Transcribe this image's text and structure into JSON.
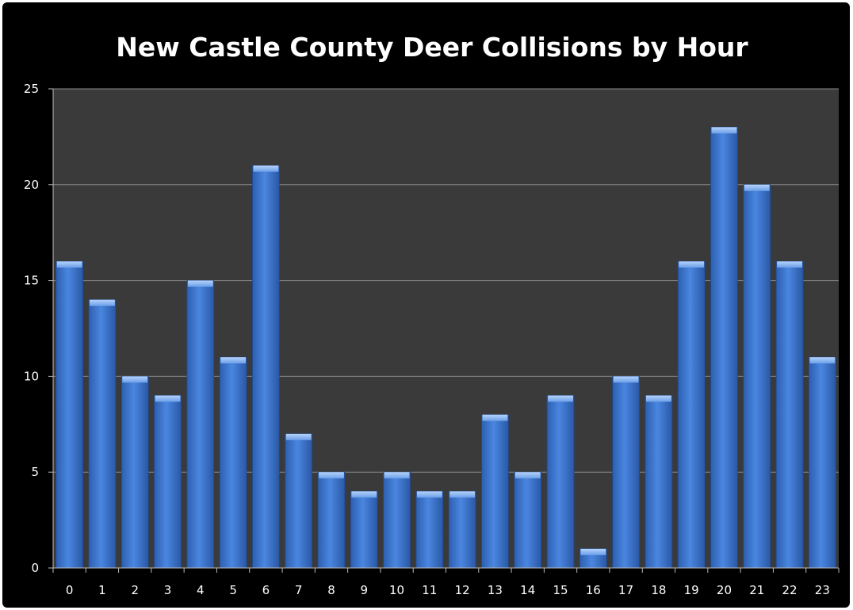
{
  "chart_data": {
    "type": "bar",
    "title": "New Castle County Deer Collisions by Hour",
    "xlabel": "",
    "ylabel": "",
    "categories": [
      "0",
      "1",
      "2",
      "3",
      "4",
      "5",
      "6",
      "7",
      "8",
      "9",
      "10",
      "11",
      "12",
      "13",
      "14",
      "15",
      "16",
      "17",
      "18",
      "19",
      "20",
      "21",
      "22",
      "23"
    ],
    "values": [
      16,
      14,
      10,
      9,
      15,
      11,
      21,
      7,
      5,
      4,
      5,
      4,
      4,
      8,
      5,
      9,
      1,
      10,
      9,
      16,
      23,
      20,
      16,
      11
    ],
    "ylim": [
      0,
      25
    ],
    "yticks": [
      0,
      5,
      10,
      15,
      20,
      25
    ],
    "grid": true,
    "legend": "none",
    "colors": {
      "background": "#000000",
      "plot_area": "#3a3a3a",
      "bar": "#3f7ad6",
      "bar_highlight": "#8fb8f2",
      "gridline": "#8a8a8a",
      "text": "#ffffff"
    }
  }
}
